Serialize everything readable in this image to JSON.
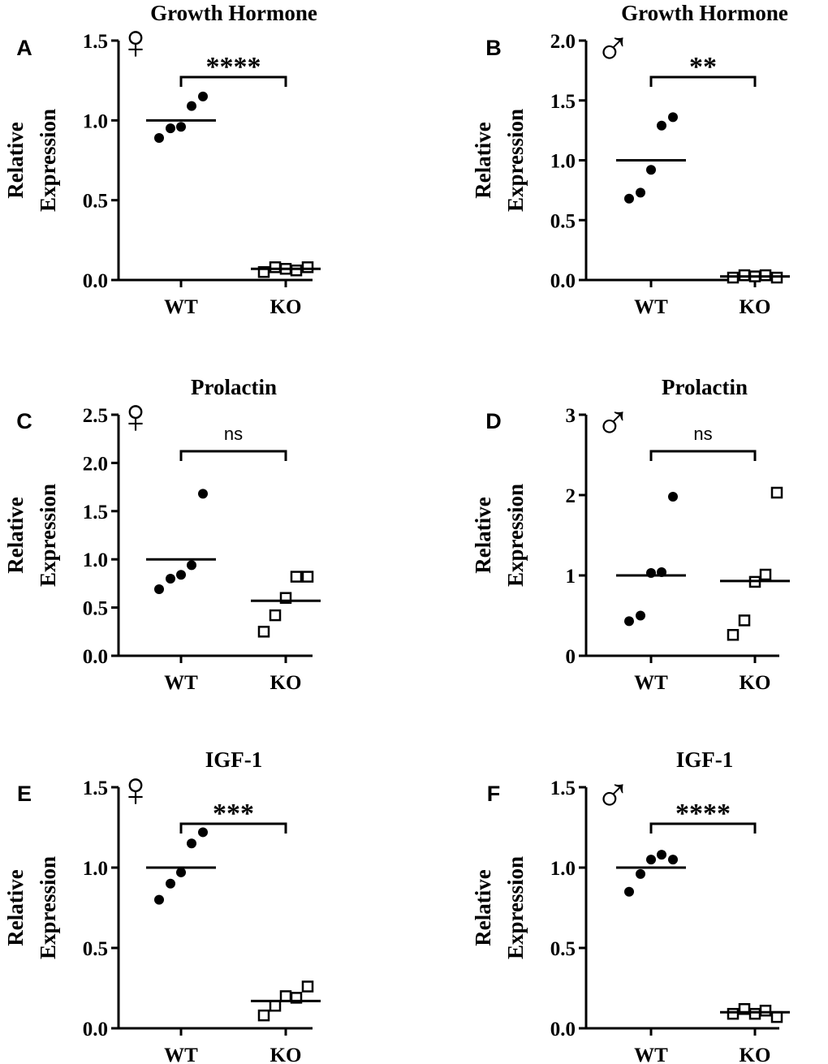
{
  "figure": {
    "group_labels": [
      "WT",
      "KO"
    ],
    "symbols": {
      "female": "♀",
      "male": "♂"
    },
    "colors": {
      "ink": "#000000",
      "background": "#ffffff"
    }
  },
  "chart_data": [
    {
      "panel": "A",
      "type": "scatter",
      "title": "Growth Hormone",
      "sex": "female",
      "ylabel": [
        "Relative",
        "Expression"
      ],
      "ylim": [
        0,
        1.5
      ],
      "yticks": [
        "0.0",
        "0.5",
        "1.0",
        "1.5"
      ],
      "categories": [
        "WT",
        "KO"
      ],
      "series": [
        {
          "name": "WT",
          "marker": "filled-circle",
          "values": [
            0.89,
            0.95,
            0.96,
            1.09,
            1.15
          ],
          "mean": 1.0
        },
        {
          "name": "KO",
          "marker": "open-square",
          "values": [
            0.05,
            0.08,
            0.07,
            0.06,
            0.08
          ],
          "mean": 0.07
        }
      ],
      "significance": "****"
    },
    {
      "panel": "B",
      "type": "scatter",
      "title": "Growth Hormone",
      "sex": "male",
      "ylabel": [
        "Relative",
        "Expression"
      ],
      "ylim": [
        0,
        2.0
      ],
      "yticks": [
        "0.0",
        "0.5",
        "1.0",
        "1.5",
        "2.0"
      ],
      "categories": [
        "WT",
        "KO"
      ],
      "series": [
        {
          "name": "WT",
          "marker": "filled-circle",
          "values": [
            0.68,
            0.73,
            0.92,
            1.29,
            1.36
          ],
          "mean": 1.0
        },
        {
          "name": "KO",
          "marker": "open-square",
          "values": [
            0.02,
            0.04,
            0.03,
            0.04,
            0.02
          ],
          "mean": 0.03
        }
      ],
      "significance": "**"
    },
    {
      "panel": "C",
      "type": "scatter",
      "title": "Prolactin",
      "sex": "female",
      "ylabel": [
        "Relative",
        "Expression"
      ],
      "ylim": [
        0,
        2.5
      ],
      "yticks": [
        "0.0",
        "0.5",
        "1.0",
        "1.5",
        "2.0",
        "2.5"
      ],
      "categories": [
        "WT",
        "KO"
      ],
      "series": [
        {
          "name": "WT",
          "marker": "filled-circle",
          "values": [
            0.69,
            0.8,
            0.84,
            0.94,
            1.68
          ],
          "mean": 1.0
        },
        {
          "name": "KO",
          "marker": "open-square",
          "values": [
            0.25,
            0.42,
            0.6,
            0.82,
            0.82
          ],
          "mean": 0.57
        }
      ],
      "significance": "ns"
    },
    {
      "panel": "D",
      "type": "scatter",
      "title": "Prolactin",
      "sex": "male",
      "ylabel": [
        "Relative",
        "Expression"
      ],
      "ylim": [
        0,
        3
      ],
      "yticks": [
        "0",
        "1",
        "2",
        "3"
      ],
      "categories": [
        "WT",
        "KO"
      ],
      "series": [
        {
          "name": "WT",
          "marker": "filled-circle",
          "values": [
            0.43,
            0.5,
            1.03,
            1.04,
            1.98
          ],
          "mean": 1.0
        },
        {
          "name": "KO",
          "marker": "open-square",
          "values": [
            0.26,
            0.44,
            0.92,
            1.01,
            2.03
          ],
          "mean": 0.93
        }
      ],
      "significance": "ns"
    },
    {
      "panel": "E",
      "type": "scatter",
      "title": "IGF-1",
      "sex": "female",
      "ylabel": [
        "Relative",
        "Expression"
      ],
      "ylim": [
        0,
        1.5
      ],
      "yticks": [
        "0.0",
        "0.5",
        "1.0",
        "1.5"
      ],
      "categories": [
        "WT",
        "KO"
      ],
      "series": [
        {
          "name": "WT",
          "marker": "filled-circle",
          "values": [
            0.8,
            0.9,
            0.97,
            1.15,
            1.22
          ],
          "mean": 1.0
        },
        {
          "name": "KO",
          "marker": "open-square",
          "values": [
            0.08,
            0.14,
            0.2,
            0.19,
            0.26
          ],
          "mean": 0.17
        }
      ],
      "significance": "***"
    },
    {
      "panel": "F",
      "type": "scatter",
      "title": "IGF-1",
      "sex": "male",
      "ylabel": [
        "Relative",
        "Expression"
      ],
      "ylim": [
        0,
        1.5
      ],
      "yticks": [
        "0.0",
        "0.5",
        "1.0",
        "1.5"
      ],
      "categories": [
        "WT",
        "KO"
      ],
      "series": [
        {
          "name": "WT",
          "marker": "filled-circle",
          "values": [
            0.85,
            0.96,
            1.05,
            1.08,
            1.05
          ],
          "mean": 1.0
        },
        {
          "name": "KO",
          "marker": "open-square",
          "values": [
            0.09,
            0.12,
            0.09,
            0.11,
            0.07
          ],
          "mean": 0.1
        }
      ],
      "significance": "****"
    }
  ]
}
